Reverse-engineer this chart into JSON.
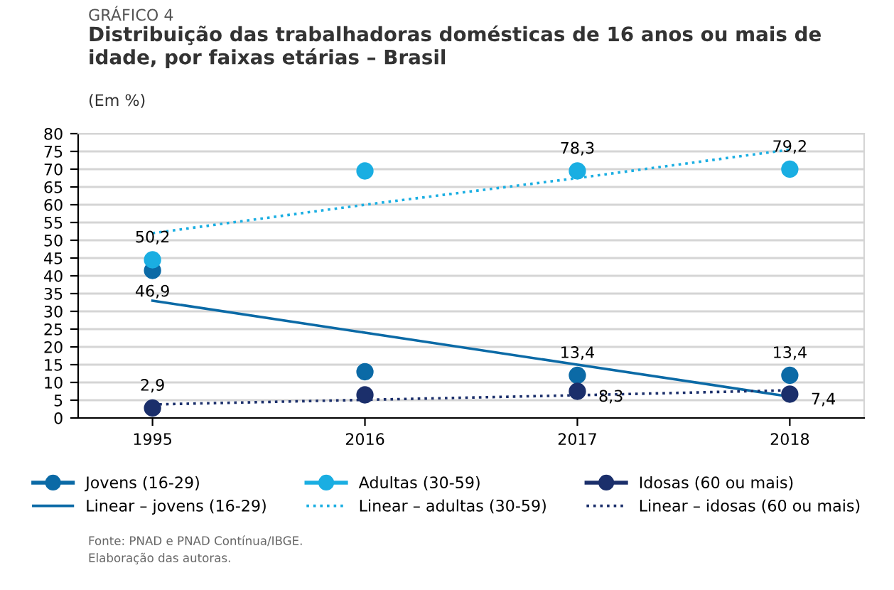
{
  "chart_data": {
    "type": "scatter",
    "title": "Distribuição das trabalhadoras domésticas de 16 anos ou mais de idade, por faixas etárias – Brasil",
    "subtitle": "(Em %)",
    "categories": [
      "1995",
      "2016",
      "2017",
      "2018"
    ],
    "series": [
      {
        "name": "Jovens (16-29)",
        "color": "#0b6aa6",
        "values": [
          41.5,
          13,
          12,
          12
        ]
      },
      {
        "name": "Adultas (30-59)",
        "color": "#1aaee2",
        "values": [
          44.5,
          69.5,
          69.5,
          70
        ]
      },
      {
        "name": "Idosas (60 ou mais)",
        "color": "#1b2f6b",
        "values": [
          2.8,
          6.5,
          7.5,
          6.7
        ]
      },
      {
        "name": "Linear – jovens (16-29)",
        "type": "line",
        "marker": "none",
        "color": "#0b6aa6",
        "line_style": "solid",
        "values": [
          33,
          24,
          15,
          6
        ]
      },
      {
        "name": "Linear – adultas (30-59)",
        "type": "line",
        "marker": "none",
        "color": "#1aaee2",
        "line_style": "dotted",
        "values": [
          52,
          60,
          67.5,
          75.5
        ]
      },
      {
        "name": "Linear – idosas (60 ou mais)",
        "type": "line",
        "marker": "none",
        "color": "#1b2f6b",
        "line_style": "dotted",
        "values": [
          3.8,
          5.1,
          6.4,
          7.8
        ]
      }
    ],
    "ylim": [
      0,
      80
    ],
    "yticks": [
      0,
      5,
      10,
      15,
      20,
      25,
      30,
      35,
      40,
      45,
      50,
      55,
      60,
      65,
      70,
      75,
      80
    ],
    "grid": "y",
    "legend": "bottom",
    "marker": "circle",
    "annotations": [
      "GRÁFICO 4",
      {
        "text": "50,2",
        "x": "1995",
        "y": 44.5
      },
      {
        "text": "46,9",
        "x": "1995",
        "y": 41.5
      },
      {
        "text": "2,9",
        "x": "1995",
        "y": 2.8
      },
      {
        "text": "78,3",
        "x": "2017",
        "y": 69.5
      },
      {
        "text": "13,4",
        "x": "2017",
        "y": 12
      },
      {
        "text": "8,3",
        "x": "2017",
        "y": 7.5
      },
      {
        "text": "79,2",
        "x": "2018",
        "y": 70
      },
      {
        "text": "13,4",
        "x": "2018",
        "y": 12
      },
      {
        "text": "7,4",
        "x": "2018",
        "y": 6.7
      },
      "Fonte: PNAD e PNAD Contínua/IBGE.",
      "Elaboração das autoras."
    ]
  }
}
